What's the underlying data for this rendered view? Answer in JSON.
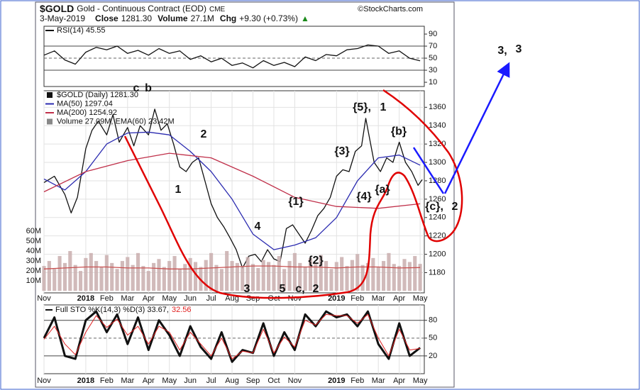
{
  "header": {
    "symbol": "$GOLD",
    "name": "Gold - Continuous Contract (EOD)",
    "exchange": "CME",
    "date": "3-May-2019",
    "stats": [
      {
        "label": "Close",
        "value": "1281.30"
      },
      {
        "label": "Volume",
        "value": "27.1M"
      },
      {
        "label": "Chg",
        "value": "+9.30 (+0.73%)"
      }
    ],
    "source": "©StockCharts.com"
  },
  "annotations": [
    {
      "text": "c",
      "color": "#1a8a1a"
    },
    {
      "text": "b",
      "color": "#8e1fa8"
    },
    {
      "text": "2",
      "color": "#1a8a1a"
    },
    {
      "text": "1",
      "color": "#1a8a1a"
    },
    {
      "text": "4",
      "color": "#1a8a1a"
    },
    {
      "text": "3",
      "color": "#1a8a1a"
    },
    {
      "text": "5",
      "color": "#1a8a1a"
    },
    {
      "text": "c,",
      "color": "#8e1fa8"
    },
    {
      "text": "2",
      "color": "#e00000"
    },
    {
      "text": "{1}",
      "color": "#1a1aff"
    },
    {
      "text": "{2}",
      "color": "#1a1aff"
    },
    {
      "text": "{3}",
      "color": "#1a1aff"
    },
    {
      "text": "{4}",
      "color": "#1a1aff"
    },
    {
      "text": "{a}",
      "color": "#1a1aff"
    },
    {
      "text": "{5},",
      "color": "#1a1aff"
    },
    {
      "text": "1",
      "color": "#1a8a1a"
    },
    {
      "text": "{b}",
      "color": "#1a1aff"
    },
    {
      "text": "{c},",
      "color": "#1a1aff"
    },
    {
      "text": "2",
      "color": "#1a8a1a"
    },
    {
      "text": "3,",
      "color": "#1a8a1a"
    },
    {
      "text": "3",
      "color": "#e00000"
    }
  ],
  "chart_data": [
    {
      "type": "line",
      "xlim": [
        0,
        18.2
      ],
      "ylim": [
        3,
        103
      ],
      "yticks": [
        10,
        30,
        50,
        70,
        90
      ],
      "ref_lines": [
        30,
        70
      ],
      "mid_line": 50,
      "series": [
        {
          "name": "RSI(14) 45.55",
          "color": "#111111",
          "x": [
            0,
            0.5,
            1,
            1.5,
            2,
            2.5,
            3,
            3.5,
            4,
            4.5,
            5,
            5.5,
            6,
            6.5,
            7,
            7.5,
            8,
            8.5,
            9,
            9.5,
            10,
            10.5,
            11,
            11.5,
            12,
            12.5,
            13,
            13.5,
            14,
            14.5,
            15,
            15.5,
            16,
            16.5,
            17,
            17.5,
            18
          ],
          "values": [
            55,
            62,
            47,
            40,
            60,
            68,
            64,
            70,
            58,
            63,
            55,
            66,
            58,
            62,
            48,
            54,
            44,
            50,
            38,
            42,
            34,
            46,
            38,
            43,
            36,
            52,
            46,
            56,
            54,
            64,
            66,
            72,
            70,
            58,
            62,
            50,
            45.55
          ]
        }
      ]
    },
    {
      "type": "line",
      "xlim": [
        0,
        18.2
      ],
      "ylim": [
        1158,
        1378
      ],
      "yticks": [
        1180,
        1200,
        1220,
        1240,
        1260,
        1280,
        1300,
        1320,
        1340,
        1360
      ],
      "grid": true,
      "xticks": [
        {
          "value": 0,
          "label": "Nov"
        },
        {
          "value": 2,
          "label": "2018"
        },
        {
          "value": 3,
          "label": "Feb"
        },
        {
          "value": 4,
          "label": "Mar"
        },
        {
          "value": 5,
          "label": "Apr"
        },
        {
          "value": 6,
          "label": "May"
        },
        {
          "value": 7,
          "label": "Jun"
        },
        {
          "value": 8,
          "label": "Jul"
        },
        {
          "value": 9,
          "label": "Aug"
        },
        {
          "value": 10,
          "label": "Sep"
        },
        {
          "value": 11,
          "label": "Oct"
        },
        {
          "value": 12,
          "label": "Nov"
        },
        {
          "value": 14,
          "label": "2019"
        },
        {
          "value": 15,
          "label": "Feb"
        },
        {
          "value": 16,
          "label": "Mar"
        },
        {
          "value": 17,
          "label": "Apr"
        },
        {
          "value": 18,
          "label": "May"
        }
      ],
      "y2lim": [
        -2,
        201
      ],
      "y2ticks": [
        {
          "value": 10,
          "label": "10M"
        },
        {
          "value": 20,
          "label": "20M"
        },
        {
          "value": 30,
          "label": "30M"
        },
        {
          "value": 40,
          "label": "40M"
        },
        {
          "value": 50,
          "label": "50M"
        },
        {
          "value": 60,
          "label": "60M"
        }
      ],
      "series": [
        {
          "name": "$GOLD (Daily) 1281.30",
          "color": "#111111",
          "x": [
            0,
            0.5,
            1,
            1.3,
            1.6,
            2,
            2.3,
            2.6,
            3,
            3.3,
            3.6,
            4,
            4.3,
            4.6,
            5,
            5.3,
            5.6,
            5.9,
            6.2,
            6.5,
            6.8,
            7.1,
            7.4,
            7.7,
            8,
            8.3,
            8.6,
            8.9,
            9.2,
            9.5,
            9.8,
            10.1,
            10.4,
            10.7,
            11,
            11.3,
            11.6,
            11.9,
            12.2,
            12.5,
            12.8,
            13.1,
            13.4,
            13.7,
            14,
            14.3,
            14.6,
            14.9,
            15.2,
            15.4,
            15.8,
            16.1,
            16.4,
            16.7,
            17,
            17.3,
            17.6,
            17.9,
            18.1
          ],
          "values": [
            1278,
            1285,
            1265,
            1245,
            1262,
            1315,
            1335,
            1345,
            1330,
            1352,
            1322,
            1338,
            1318,
            1340,
            1330,
            1358,
            1335,
            1342,
            1320,
            1295,
            1290,
            1300,
            1305,
            1280,
            1255,
            1240,
            1230,
            1218,
            1205,
            1185,
            1198,
            1200,
            1192,
            1205,
            1195,
            1192,
            1228,
            1232,
            1222,
            1212,
            1226,
            1242,
            1250,
            1262,
            1285,
            1292,
            1290,
            1312,
            1318,
            1348,
            1300,
            1290,
            1305,
            1300,
            1322,
            1300,
            1290,
            1275,
            1281.3
          ]
        },
        {
          "name": "MA(50) 1297.04",
          "color": "#2b2bb0",
          "x": [
            0,
            1,
            2,
            3,
            4,
            5,
            6,
            7,
            8,
            9,
            10,
            11,
            12,
            13,
            14,
            15,
            16,
            17,
            18
          ],
          "values": [
            1282,
            1270,
            1290,
            1320,
            1332,
            1333,
            1330,
            1312,
            1290,
            1260,
            1222,
            1205,
            1210,
            1218,
            1240,
            1280,
            1305,
            1308,
            1297.04
          ]
        },
        {
          "name": "MA(200) 1254.92",
          "color": "#c0304a",
          "x": [
            0,
            2,
            4,
            6,
            8,
            10,
            12,
            14,
            16,
            18
          ],
          "values": [
            1268,
            1290,
            1302,
            1310,
            1305,
            1285,
            1262,
            1252,
            1250,
            1254.92
          ]
        },
        {
          "name": "Volume 27.09M, EMA(60) 23.42M",
          "kind": "bar",
          "axis": "y2",
          "color": "#c9aeae",
          "x": [
            0,
            0.25,
            0.5,
            0.75,
            1,
            1.25,
            1.5,
            1.75,
            2,
            2.25,
            2.5,
            2.75,
            3,
            3.25,
            3.5,
            3.75,
            4,
            4.25,
            4.5,
            4.75,
            5,
            5.25,
            5.5,
            5.75,
            6,
            6.25,
            6.5,
            6.75,
            7,
            7.25,
            7.5,
            7.75,
            8,
            8.25,
            8.5,
            8.75,
            9,
            9.25,
            9.5,
            9.75,
            10,
            10.25,
            10.5,
            10.75,
            11,
            11.25,
            11.5,
            11.75,
            12,
            12.25,
            12.5,
            12.75,
            13,
            13.25,
            13.5,
            13.75,
            14,
            14.25,
            14.5,
            14.75,
            15,
            15.25,
            15.5,
            15.75,
            16,
            16.25,
            16.5,
            16.75,
            17,
            17.25,
            17.5,
            17.75,
            18
          ],
          "values": [
            25,
            30,
            22,
            35,
            28,
            40,
            26,
            20,
            33,
            38,
            30,
            24,
            36,
            28,
            22,
            30,
            34,
            26,
            38,
            25,
            20,
            28,
            32,
            24,
            30,
            35,
            22,
            27,
            33,
            29,
            24,
            31,
            38,
            26,
            22,
            40,
            30,
            28,
            25,
            34,
            27,
            23,
            31,
            29,
            26,
            35,
            22,
            30,
            38,
            28,
            24,
            33,
            27,
            36,
            30,
            22,
            29,
            34,
            25,
            31,
            37,
            26,
            28,
            33,
            24,
            30,
            38,
            27,
            25,
            32,
            29,
            35,
            27.09
          ]
        },
        {
          "axis": "y2",
          "color": "#c85050",
          "x": [
            0,
            1,
            2,
            3,
            4,
            5,
            6,
            7,
            8,
            9,
            10,
            11,
            12,
            13,
            14,
            15,
            16,
            17,
            18
          ],
          "values": [
            22,
            23,
            24,
            24,
            23,
            23,
            22,
            22,
            23,
            24,
            25,
            25,
            24,
            24,
            23,
            24,
            24,
            23,
            23.42
          ]
        }
      ]
    },
    {
      "type": "line",
      "xlim": [
        0,
        18.2
      ],
      "ylim": [
        -10,
        106
      ],
      "yticks": [
        20,
        50,
        80
      ],
      "ref_lines": [
        20,
        80
      ],
      "mid_line": 50,
      "grid": true,
      "title": "Full STO %K(14,3) %D(3) 33.67,",
      "title_value": "32.56",
      "xticks": [
        {
          "value": 0,
          "label": "Nov"
        },
        {
          "value": 2,
          "label": "2018"
        },
        {
          "value": 3,
          "label": "Feb"
        },
        {
          "value": 4,
          "label": "Mar"
        },
        {
          "value": 5,
          "label": "Apr"
        },
        {
          "value": 6,
          "label": "May"
        },
        {
          "value": 7,
          "label": "Jun"
        },
        {
          "value": 8,
          "label": "Jul"
        },
        {
          "value": 9,
          "label": "Aug"
        },
        {
          "value": 10,
          "label": "Sep"
        },
        {
          "value": 11,
          "label": "Oct"
        },
        {
          "value": 12,
          "label": "Nov"
        },
        {
          "value": 14,
          "label": "2019"
        },
        {
          "value": 15,
          "label": "Feb"
        },
        {
          "value": 16,
          "label": "Mar"
        },
        {
          "value": 17,
          "label": "Apr"
        },
        {
          "value": 18,
          "label": "May"
        }
      ],
      "series": [
        {
          "color": "#111111",
          "width": 3,
          "x": [
            0,
            0.5,
            1,
            1.5,
            2,
            2.5,
            3,
            3.5,
            4,
            4.5,
            5,
            5.5,
            6,
            6.5,
            7,
            7.5,
            8,
            8.5,
            9,
            9.5,
            10,
            10.5,
            11,
            11.5,
            12,
            12.5,
            13,
            13.5,
            14,
            14.5,
            15,
            15.5,
            16,
            16.5,
            17,
            17.5,
            18
          ],
          "values": [
            50,
            85,
            20,
            15,
            80,
            95,
            60,
            90,
            40,
            85,
            30,
            80,
            55,
            20,
            70,
            35,
            15,
            60,
            10,
            30,
            25,
            75,
            20,
            60,
            30,
            90,
            70,
            95,
            85,
            90,
            70,
            95,
            40,
            15,
            75,
            20,
            33.67
          ]
        },
        {
          "color": "#e02020",
          "width": 1,
          "x": [
            0,
            0.5,
            1,
            1.5,
            2,
            2.5,
            3,
            3.5,
            4,
            4.5,
            5,
            5.5,
            6,
            6.5,
            7,
            7.5,
            8,
            8.5,
            9,
            9.5,
            10,
            10.5,
            11,
            11.5,
            12,
            12.5,
            13,
            13.5,
            14,
            14.5,
            15,
            15.5,
            16,
            16.5,
            17,
            17.5,
            18
          ],
          "values": [
            48,
            70,
            40,
            22,
            60,
            88,
            68,
            82,
            55,
            70,
            40,
            70,
            60,
            30,
            60,
            40,
            20,
            50,
            15,
            28,
            25,
            65,
            25,
            52,
            35,
            80,
            72,
            90,
            88,
            88,
            75,
            90,
            50,
            20,
            65,
            30,
            32.56
          ]
        }
      ]
    }
  ]
}
